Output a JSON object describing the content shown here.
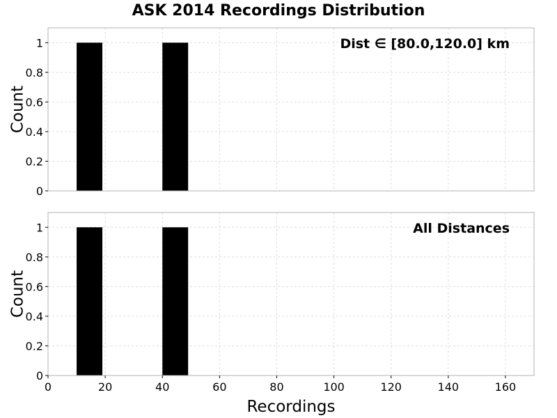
{
  "title": "ASK 2014 Recordings Distribution",
  "chart_data": [
    {
      "type": "bar",
      "annotation": "Dist ∈ [80.0,120.0] km",
      "xlabel": "",
      "ylabel": "Count",
      "xlim": [
        0,
        170
      ],
      "ylim": [
        0,
        1.1
      ],
      "xticks": [],
      "yticks": [
        "0",
        "0.2",
        "0.4",
        "0.6",
        "0.8",
        "1"
      ],
      "grid": true,
      "bars": [
        {
          "x0": 10,
          "x1": 19,
          "value": 1
        },
        {
          "x0": 40,
          "x1": 49,
          "value": 1
        }
      ]
    },
    {
      "type": "bar",
      "annotation": "All Distances",
      "xlabel": "Recordings",
      "ylabel": "Count",
      "xlim": [
        0,
        170
      ],
      "ylim": [
        0,
        1.1
      ],
      "xticks": [
        "0",
        "20",
        "40",
        "60",
        "80",
        "100",
        "120",
        "140",
        "160"
      ],
      "yticks": [
        "0",
        "0.2",
        "0.4",
        "0.6",
        "0.8",
        "1"
      ],
      "grid": true,
      "bars": [
        {
          "x0": 10,
          "x1": 19,
          "value": 1
        },
        {
          "x0": 40,
          "x1": 49,
          "value": 1
        }
      ]
    }
  ],
  "colors": {
    "bar": "#000000",
    "grid": "#dddddd",
    "frame": "#b0b0b0"
  }
}
